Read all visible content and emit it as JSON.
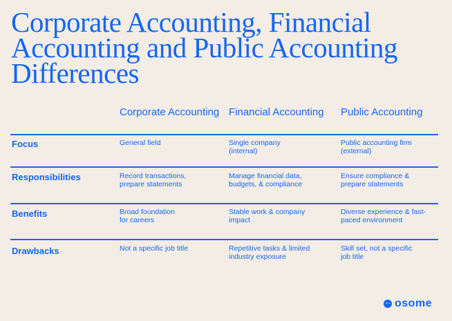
{
  "title": "Corporate Accounting, Financial Accounting and Public Accounting Differences",
  "columns": [
    "Corporate Accounting",
    "Financial Accounting",
    "Public Accounting"
  ],
  "rows": [
    {
      "label": "Focus",
      "cells": [
        "General field",
        "Single company (internal)",
        "Public accounting firm (external)"
      ]
    },
    {
      "label": "Responsibilities",
      "cells": [
        "Record transactions, prepare statements",
        "Manage financial data, budgets, & compliance",
        "Ensure compliance & prepare statements"
      ]
    },
    {
      "label": "Benefits",
      "cells": [
        "Broad foundation for careers",
        "Stable work & company impact",
        "Diverse experience & fast-paced environment"
      ]
    },
    {
      "label": "Drawbacks",
      "cells": [
        "Not a specific job title",
        "Repetitive tasks & limited industry exposure",
        "Skill set, not a specific job title"
      ]
    }
  ],
  "logo": "osome",
  "colors": {
    "accent": "#1466f2",
    "background": "#f3ede5"
  }
}
